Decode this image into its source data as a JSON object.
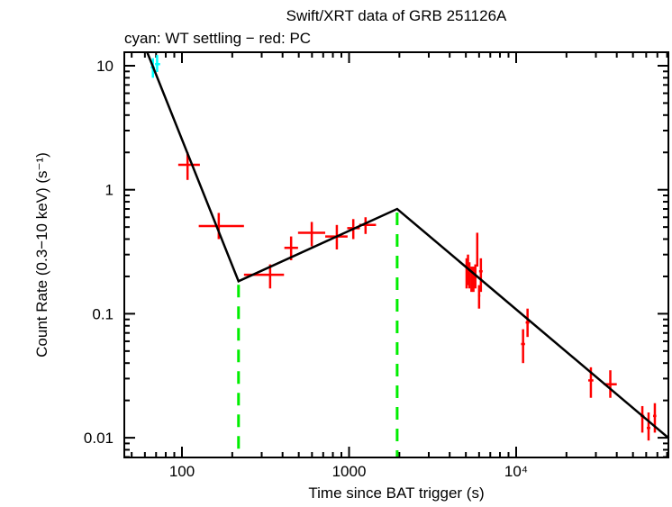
{
  "chart_data": {
    "type": "scatter",
    "title": "Swift/XRT data of GRB 251126A",
    "subtitle": "cyan: WT settling − red: PC",
    "xlabel": "Time since BAT trigger (s)",
    "ylabel": "Count Rate (0.3−10 keV) (s⁻¹)",
    "xscale": "log",
    "yscale": "log",
    "xlim": [
      45,
      82000
    ],
    "ylim": [
      0.0075,
      13
    ],
    "xticks": [
      {
        "v": 100,
        "label": "100"
      },
      {
        "v": 1000,
        "label": "1000"
      },
      {
        "v": 10000,
        "label": "10⁴"
      }
    ],
    "yticks": [
      {
        "v": 10,
        "label": "10"
      },
      {
        "v": 1,
        "label": "1"
      },
      {
        "v": 0.1,
        "label": "0.1"
      },
      {
        "v": 0.01,
        "label": "0.01"
      }
    ],
    "grid": false,
    "series": [
      {
        "name": "WT settling",
        "color": "#00ffff",
        "points": [
          {
            "t": 67,
            "tl": 65,
            "th": 69,
            "r": 9.7,
            "rl": 8.0,
            "rh": 11.5
          },
          {
            "t": 71,
            "tl": 69,
            "th": 74,
            "r": 10.3,
            "rl": 8.9,
            "rh": 12.2
          }
        ]
      },
      {
        "name": "PC",
        "color": "#ff0000",
        "points": [
          {
            "t": 108,
            "tl": 95,
            "th": 128,
            "r": 1.59,
            "rl": 1.2,
            "rh": 2.0
          },
          {
            "t": 166,
            "tl": 126,
            "th": 235,
            "r": 0.51,
            "rl": 0.4,
            "rh": 0.65
          },
          {
            "t": 337,
            "tl": 235,
            "th": 408,
            "r": 0.206,
            "rl": 0.16,
            "rh": 0.25
          },
          {
            "t": 450,
            "tl": 410,
            "th": 495,
            "r": 0.34,
            "rl": 0.27,
            "rh": 0.42
          },
          {
            "t": 598,
            "tl": 495,
            "th": 720,
            "r": 0.45,
            "rl": 0.35,
            "rh": 0.55
          },
          {
            "t": 845,
            "tl": 720,
            "th": 980,
            "r": 0.42,
            "rl": 0.33,
            "rh": 0.52
          },
          {
            "t": 1060,
            "tl": 975,
            "th": 1160,
            "r": 0.49,
            "rl": 0.4,
            "rh": 0.58
          },
          {
            "t": 1255,
            "tl": 1150,
            "th": 1450,
            "r": 0.52,
            "rl": 0.44,
            "rh": 0.6
          },
          {
            "t": 5050,
            "tl": 5000,
            "th": 5100,
            "r": 0.23,
            "rl": 0.16,
            "rh": 0.28
          },
          {
            "t": 5150,
            "tl": 5100,
            "th": 5200,
            "r": 0.21,
            "rl": 0.17,
            "rh": 0.3
          },
          {
            "t": 5250,
            "tl": 5200,
            "th": 5300,
            "r": 0.2,
            "rl": 0.16,
            "rh": 0.26
          },
          {
            "t": 5400,
            "tl": 5320,
            "th": 5480,
            "r": 0.19,
            "rl": 0.15,
            "rh": 0.24
          },
          {
            "t": 5550,
            "tl": 5480,
            "th": 5620,
            "r": 0.18,
            "rl": 0.15,
            "rh": 0.24
          },
          {
            "t": 5700,
            "tl": 5620,
            "th": 5800,
            "r": 0.2,
            "rl": 0.16,
            "rh": 0.25
          },
          {
            "t": 5850,
            "tl": 5780,
            "th": 5920,
            "r": 0.31,
            "rl": 0.24,
            "rh": 0.45
          },
          {
            "t": 6000,
            "tl": 5920,
            "th": 6100,
            "r": 0.14,
            "rl": 0.11,
            "rh": 0.17
          },
          {
            "t": 6150,
            "tl": 6000,
            "th": 6300,
            "r": 0.22,
            "rl": 0.15,
            "rh": 0.28
          },
          {
            "t": 11000,
            "tl": 10700,
            "th": 11300,
            "r": 0.057,
            "rl": 0.04,
            "rh": 0.075
          },
          {
            "t": 11700,
            "tl": 11400,
            "th": 12000,
            "r": 0.085,
            "rl": 0.065,
            "rh": 0.11
          },
          {
            "t": 28000,
            "tl": 27000,
            "th": 29000,
            "r": 0.029,
            "rl": 0.021,
            "rh": 0.037
          },
          {
            "t": 36600,
            "tl": 33500,
            "th": 40000,
            "r": 0.027,
            "rl": 0.021,
            "rh": 0.035
          },
          {
            "t": 56900,
            "tl": 55500,
            "th": 58500,
            "r": 0.015,
            "rl": 0.011,
            "rh": 0.018
          },
          {
            "t": 62000,
            "tl": 60500,
            "th": 63500,
            "r": 0.012,
            "rl": 0.0095,
            "rh": 0.016
          },
          {
            "t": 67600,
            "tl": 66000,
            "th": 69000,
            "r": 0.015,
            "rl": 0.011,
            "rh": 0.019
          }
        ]
      }
    ],
    "model": {
      "color": "#000000",
      "points": [
        {
          "t": 62,
          "r": 12.8
        },
        {
          "t": 218,
          "r": 0.183
        },
        {
          "t": 1940,
          "r": 0.7
        },
        {
          "t": 82000,
          "r": 0.0099
        }
      ]
    },
    "breaks": {
      "color": "#00ee00",
      "times": [
        218,
        1940
      ]
    }
  }
}
